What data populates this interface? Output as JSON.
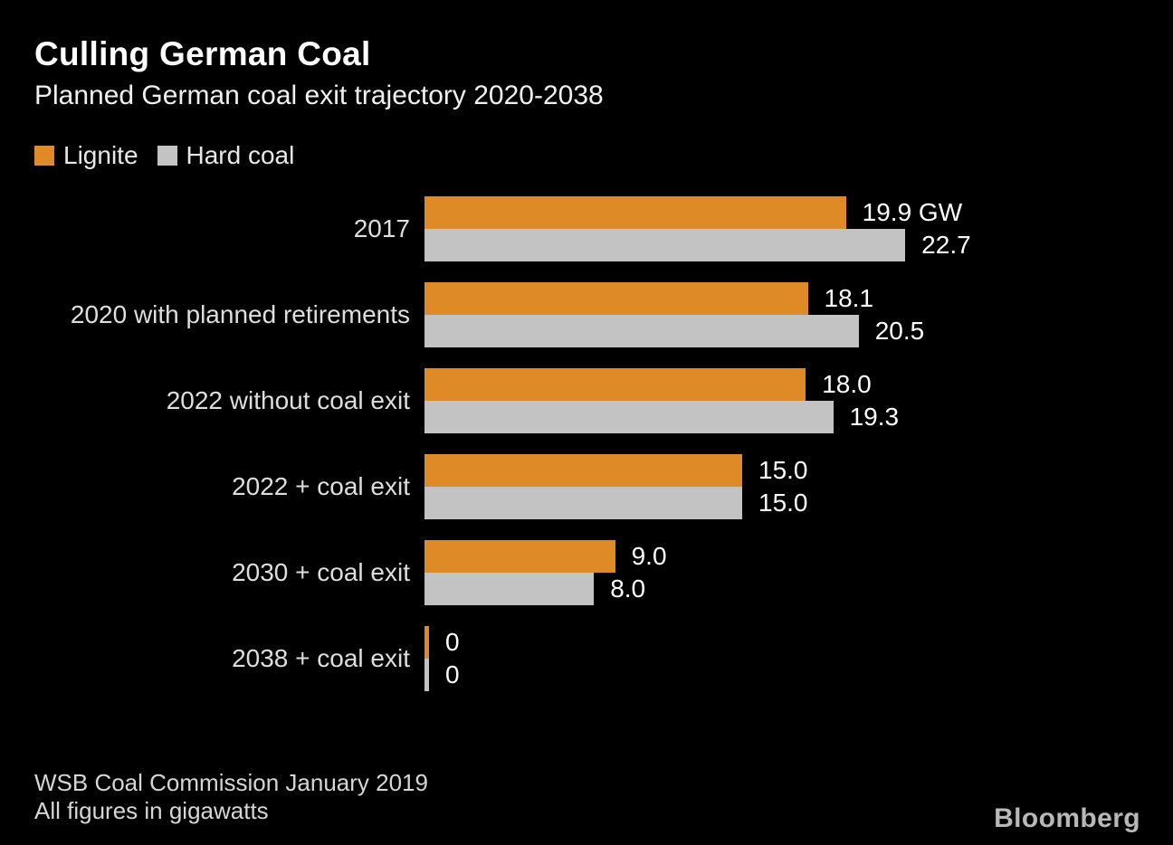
{
  "header": {
    "title": "Culling German Coal",
    "subtitle": "Planned German coal exit trajectory 2020-2038"
  },
  "legend": {
    "items": [
      {
        "label": "Lignite",
        "color": "#dd8a27"
      },
      {
        "label": "Hard coal",
        "color": "#c3c3c3"
      }
    ]
  },
  "chart_data": {
    "type": "bar",
    "orientation": "horizontal",
    "title": "Culling German Coal",
    "subtitle": "Planned German coal exit trajectory 2020-2038",
    "unit": "GW",
    "categories": [
      "2017",
      "2020 with planned retirements",
      "2022 without coal exit",
      "2022 + coal exit",
      "2030 + coal exit",
      "2038 + coal exit"
    ],
    "series": [
      {
        "name": "Lignite",
        "color": "#dd8a27",
        "values": [
          19.9,
          18.1,
          18.0,
          15.0,
          9.0,
          0
        ]
      },
      {
        "name": "Hard coal",
        "color": "#c3c3c3",
        "values": [
          22.7,
          20.5,
          19.3,
          15.0,
          8.0,
          0
        ]
      }
    ],
    "value_labels": {
      "lignite": [
        "19.9 GW",
        "18.1",
        "18.0",
        "15.0",
        "9.0",
        "0"
      ],
      "hard_coal": [
        "22.7",
        "20.5",
        "19.3",
        "15.0",
        "8.0",
        "0"
      ]
    },
    "xlim": [
      0,
      22.7
    ],
    "grid": false,
    "legend_position": "top-left",
    "background_color": "#000000"
  },
  "footer": {
    "source": "WSB Coal Commission January 2019",
    "note": "All figures in gigawatts",
    "brand": "Bloomberg"
  }
}
